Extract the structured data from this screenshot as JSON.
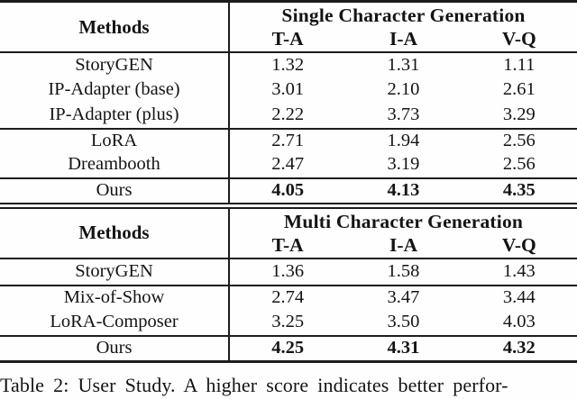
{
  "styles": {
    "bg": "#fefefe",
    "text": "#141414",
    "rule": "#1c1c1c"
  },
  "tables": [
    {
      "methods_header": "Methods",
      "section_header": "Single Character Generation",
      "columns": [
        "T-A",
        "I-A",
        "V-Q"
      ],
      "rows": [
        {
          "method": "StoryGEN",
          "v": [
            "1.32",
            "1.31",
            "1.11"
          ]
        },
        {
          "method": "IP-Adapter (base)",
          "v": [
            "3.01",
            "2.10",
            "2.61"
          ]
        },
        {
          "method": "IP-Adapter (plus)",
          "v": [
            "2.22",
            "3.73",
            "3.29"
          ]
        },
        {
          "method": "LoRA",
          "v": [
            "2.71",
            "1.94",
            "2.56"
          ]
        },
        {
          "method": "Dreambooth",
          "v": [
            "2.47",
            "3.19",
            "2.56"
          ]
        },
        {
          "method": "Ours",
          "v": [
            "4.05",
            "4.13",
            "4.35"
          ]
        }
      ]
    },
    {
      "methods_header": "Methods",
      "section_header": "Multi Character Generation",
      "columns": [
        "T-A",
        "I-A",
        "V-Q"
      ],
      "rows": [
        {
          "method": "StoryGEN",
          "v": [
            "1.36",
            "1.58",
            "1.43"
          ]
        },
        {
          "method": "Mix-of-Show",
          "v": [
            "2.74",
            "3.47",
            "3.44"
          ]
        },
        {
          "method": "LoRA-Composer",
          "v": [
            "3.25",
            "3.50",
            "4.03"
          ]
        },
        {
          "method": "Ours",
          "v": [
            "4.25",
            "4.31",
            "4.32"
          ]
        }
      ]
    }
  ],
  "caption": "Table 2: User Study. A higher score indicates better perfor-"
}
